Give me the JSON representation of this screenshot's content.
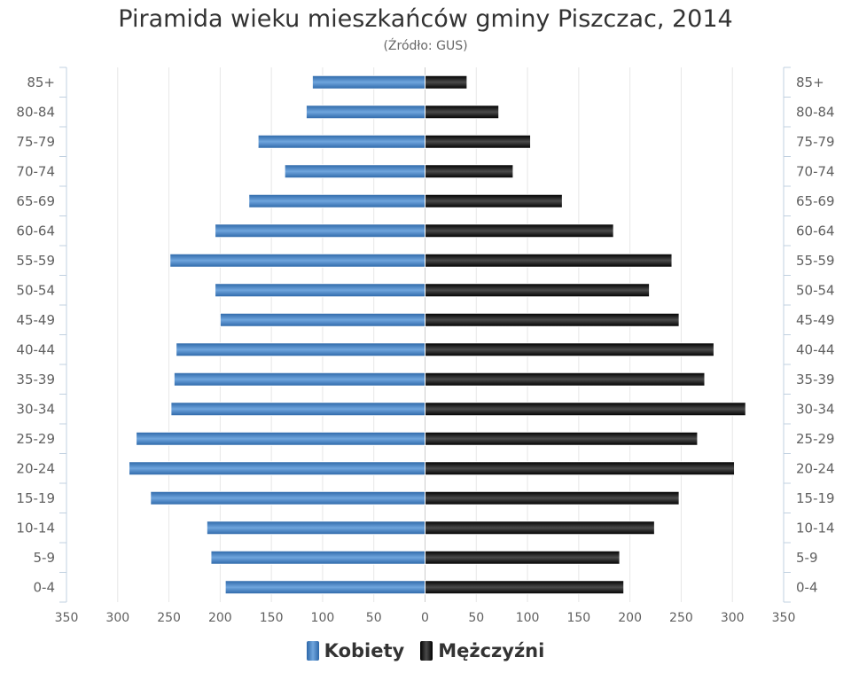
{
  "chart_data": {
    "type": "bar",
    "orientation": "horizontal",
    "title": "Piramida wieku mieszkańców gminy Piszczac, 2014",
    "subtitle": "(Źródło: GUS)",
    "categories": [
      "85+",
      "80-84",
      "75-79",
      "70-74",
      "65-69",
      "60-64",
      "55-59",
      "50-54",
      "45-49",
      "40-44",
      "35-39",
      "30-34",
      "25-29",
      "20-24",
      "15-19",
      "10-14",
      "5-9",
      "0-4"
    ],
    "series": [
      {
        "name": "Kobiety",
        "color": "#4a86c8",
        "values": [
          110,
          116,
          163,
          137,
          172,
          205,
          249,
          205,
          200,
          243,
          245,
          248,
          282,
          289,
          268,
          213,
          209,
          195
        ]
      },
      {
        "name": "Mężczyźni",
        "color": "#1a1a1a",
        "values": [
          41,
          72,
          103,
          86,
          134,
          184,
          241,
          219,
          248,
          282,
          273,
          313,
          266,
          302,
          248,
          224,
          190,
          194
        ]
      }
    ],
    "xlim": [
      -350,
      350
    ],
    "x_ticks": [
      "350",
      "300",
      "250",
      "200",
      "150",
      "100",
      "50",
      "0",
      "50",
      "100",
      "150",
      "200",
      "250",
      "300",
      "350"
    ],
    "grid": true,
    "legend_position": "bottom"
  }
}
